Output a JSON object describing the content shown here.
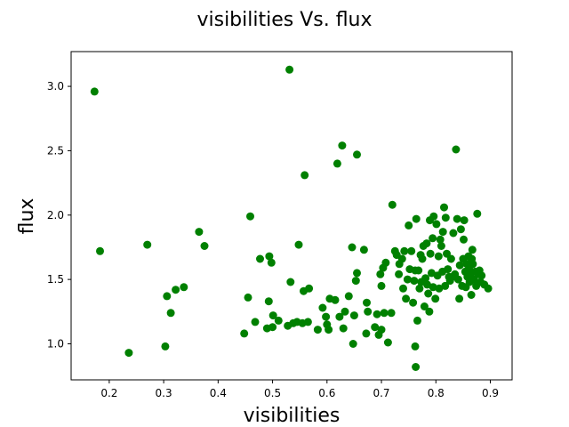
{
  "chart_data": {
    "type": "scatter",
    "title": "visibilities Vs. flux",
    "xlabel": "visibilities",
    "ylabel": "flux",
    "xlim": [
      0.13,
      0.94
    ],
    "ylim": [
      0.72,
      3.27
    ],
    "xticks": [
      0.2,
      0.3,
      0.4,
      0.5,
      0.6,
      0.7,
      0.8,
      0.9
    ],
    "xtick_labels": [
      "0.2",
      "0.3",
      "0.4",
      "0.5",
      "0.6",
      "0.7",
      "0.8",
      "0.9"
    ],
    "yticks": [
      1.0,
      1.5,
      2.0,
      2.5,
      3.0
    ],
    "ytick_labels": [
      "1.0",
      "1.5",
      "2.0",
      "2.5",
      "3.0"
    ],
    "grid": false,
    "marker_color": "#008000",
    "series": [
      {
        "points": [
          [
            0.173,
            2.96
          ],
          [
            0.183,
            1.72
          ],
          [
            0.236,
            0.93
          ],
          [
            0.27,
            1.77
          ],
          [
            0.303,
            0.98
          ],
          [
            0.306,
            1.37
          ],
          [
            0.313,
            1.24
          ],
          [
            0.322,
            1.42
          ],
          [
            0.337,
            1.44
          ],
          [
            0.365,
            1.87
          ],
          [
            0.375,
            1.76
          ],
          [
            0.448,
            1.08
          ],
          [
            0.455,
            1.36
          ],
          [
            0.459,
            1.99
          ],
          [
            0.468,
            1.17
          ],
          [
            0.477,
            1.66
          ],
          [
            0.49,
            1.12
          ],
          [
            0.493,
            1.33
          ],
          [
            0.494,
            1.68
          ],
          [
            0.498,
            1.63
          ],
          [
            0.5,
            1.13
          ],
          [
            0.501,
            1.22
          ],
          [
            0.511,
            1.18
          ],
          [
            0.528,
            1.14
          ],
          [
            0.531,
            3.13
          ],
          [
            0.533,
            1.48
          ],
          [
            0.538,
            1.16
          ],
          [
            0.545,
            1.17
          ],
          [
            0.548,
            1.77
          ],
          [
            0.555,
            1.16
          ],
          [
            0.557,
            1.41
          ],
          [
            0.559,
            2.31
          ],
          [
            0.565,
            1.17
          ],
          [
            0.567,
            1.43
          ],
          [
            0.583,
            1.11
          ],
          [
            0.592,
            1.28
          ],
          [
            0.598,
            1.21
          ],
          [
            0.6,
            1.15
          ],
          [
            0.603,
            1.11
          ],
          [
            0.605,
            1.35
          ],
          [
            0.615,
            1.34
          ],
          [
            0.619,
            2.4
          ],
          [
            0.623,
            1.21
          ],
          [
            0.628,
            2.54
          ],
          [
            0.63,
            1.12
          ],
          [
            0.633,
            1.25
          ],
          [
            0.64,
            1.37
          ],
          [
            0.646,
            1.75
          ],
          [
            0.648,
            1.0
          ],
          [
            0.65,
            1.22
          ],
          [
            0.653,
            1.49
          ],
          [
            0.655,
            2.47
          ],
          [
            0.655,
            1.55
          ],
          [
            0.668,
            1.73
          ],
          [
            0.672,
            1.08
          ],
          [
            0.673,
            1.32
          ],
          [
            0.675,
            1.25
          ],
          [
            0.688,
            1.13
          ],
          [
            0.692,
            1.23
          ],
          [
            0.695,
            1.07
          ],
          [
            0.698,
            1.54
          ],
          [
            0.7,
            1.45
          ],
          [
            0.7,
            1.11
          ],
          [
            0.703,
            1.59
          ],
          [
            0.705,
            1.24
          ],
          [
            0.708,
            1.63
          ],
          [
            0.712,
            1.01
          ],
          [
            0.718,
            1.24
          ],
          [
            0.72,
            2.08
          ],
          [
            0.725,
            1.72
          ],
          [
            0.728,
            1.69
          ],
          [
            0.732,
            1.54
          ],
          [
            0.733,
            1.62
          ],
          [
            0.738,
            1.66
          ],
          [
            0.74,
            1.43
          ],
          [
            0.742,
            1.72
          ],
          [
            0.745,
            1.35
          ],
          [
            0.748,
            1.5
          ],
          [
            0.75,
            1.92
          ],
          [
            0.752,
            1.58
          ],
          [
            0.755,
            1.72
          ],
          [
            0.758,
            1.32
          ],
          [
            0.76,
            1.49
          ],
          [
            0.762,
            1.57
          ],
          [
            0.762,
            0.98
          ],
          [
            0.763,
            0.82
          ],
          [
            0.764,
            1.97
          ],
          [
            0.766,
            1.18
          ],
          [
            0.768,
            1.57
          ],
          [
            0.77,
            1.43
          ],
          [
            0.772,
            1.69
          ],
          [
            0.773,
            1.48
          ],
          [
            0.775,
            1.66
          ],
          [
            0.777,
            1.76
          ],
          [
            0.779,
            1.29
          ],
          [
            0.781,
            1.51
          ],
          [
            0.783,
            1.78
          ],
          [
            0.784,
            1.46
          ],
          [
            0.786,
            1.39
          ],
          [
            0.788,
            1.25
          ],
          [
            0.789,
            1.96
          ],
          [
            0.79,
            1.7
          ],
          [
            0.792,
            1.55
          ],
          [
            0.794,
            1.82
          ],
          [
            0.795,
            1.44
          ],
          [
            0.796,
            1.99
          ],
          [
            0.799,
            1.35
          ],
          [
            0.801,
            1.93
          ],
          [
            0.803,
            1.53
          ],
          [
            0.805,
            1.68
          ],
          [
            0.806,
            1.43
          ],
          [
            0.808,
            1.81
          ],
          [
            0.81,
            1.76
          ],
          [
            0.812,
            1.56
          ],
          [
            0.813,
            1.87
          ],
          [
            0.815,
            2.06
          ],
          [
            0.817,
            1.45
          ],
          [
            0.818,
            1.98
          ],
          [
            0.82,
            1.7
          ],
          [
            0.822,
            1.58
          ],
          [
            0.824,
            1.52
          ],
          [
            0.826,
            1.49
          ],
          [
            0.828,
            1.66
          ],
          [
            0.83,
            1.52
          ],
          [
            0.832,
            1.86
          ],
          [
            0.835,
            1.54
          ],
          [
            0.837,
            2.51
          ],
          [
            0.839,
            1.97
          ],
          [
            0.841,
            1.5
          ],
          [
            0.843,
            1.35
          ],
          [
            0.844,
            1.61
          ],
          [
            0.846,
            1.89
          ],
          [
            0.848,
            1.45
          ],
          [
            0.85,
            1.66
          ],
          [
            0.851,
            1.81
          ],
          [
            0.852,
            1.96
          ],
          [
            0.854,
            1.56
          ],
          [
            0.855,
            1.44
          ],
          [
            0.857,
            1.62
          ],
          [
            0.858,
            1.52
          ],
          [
            0.86,
            1.68
          ],
          [
            0.861,
            1.58
          ],
          [
            0.862,
            1.48
          ],
          [
            0.863,
            1.53
          ],
          [
            0.865,
            1.38
          ],
          [
            0.866,
            1.66
          ],
          [
            0.867,
            1.73
          ],
          [
            0.868,
            1.62
          ],
          [
            0.87,
            1.5
          ],
          [
            0.872,
            1.56
          ],
          [
            0.874,
            1.45
          ],
          [
            0.876,
            2.01
          ],
          [
            0.878,
            1.54
          ],
          [
            0.88,
            1.57
          ],
          [
            0.882,
            1.48
          ],
          [
            0.884,
            1.53
          ],
          [
            0.889,
            1.46
          ],
          [
            0.896,
            1.43
          ]
        ]
      }
    ]
  }
}
